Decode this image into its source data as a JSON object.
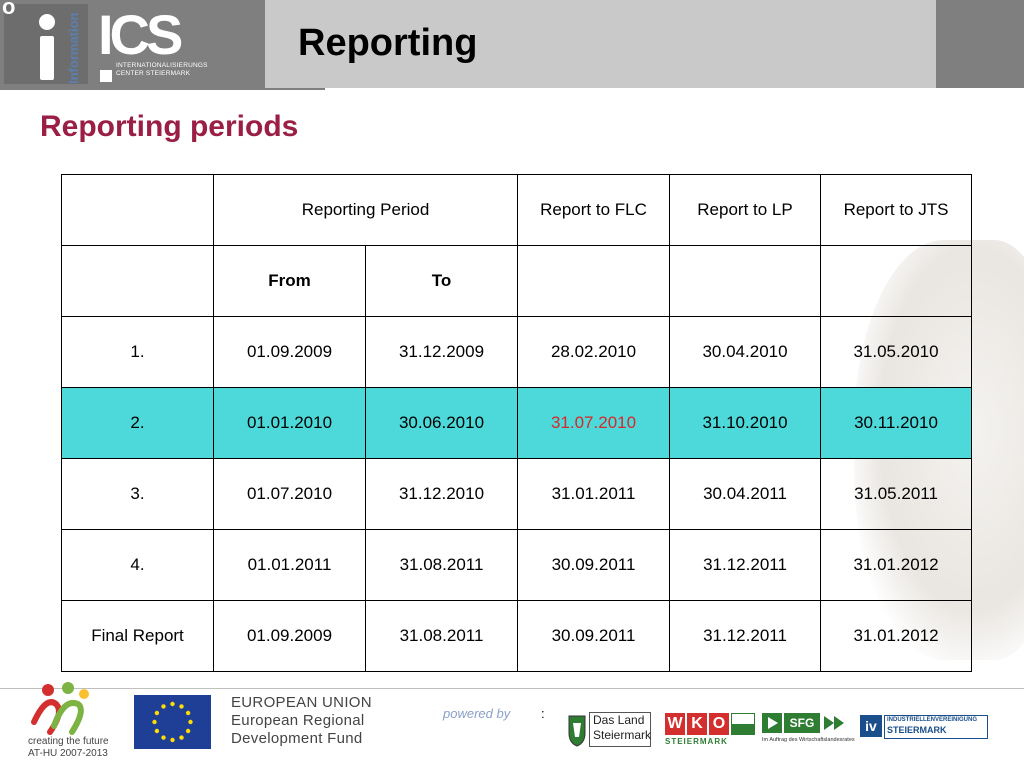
{
  "header": {
    "title": "Reporting",
    "info_label": "Information",
    "corner_mark": "o",
    "logo_name": "ICS",
    "logo_subtitle_line1": "INTERNATIONALISIERUNGS",
    "logo_subtitle_line2": "CENTER STEIERMARK"
  },
  "subtitle": "Reporting periods",
  "table": {
    "header": {
      "blank": "",
      "reporting_period": "Reporting Period",
      "report_flc": "Report to FLC",
      "report_lp": "Report to LP",
      "report_jts": "Report to JTS"
    },
    "subheader": {
      "from": "From",
      "to": "To"
    },
    "rows": [
      {
        "label": "1.",
        "from": "01.09.2009",
        "to": "31.12.2009",
        "flc": "28.02.2010",
        "lp": "30.04.2010",
        "jts": "31.05.2010"
      },
      {
        "label": "2.",
        "from": "01.01.2010",
        "to": "30.06.2010",
        "flc": "31.07.2010",
        "lp": "31.10.2010",
        "jts": "30.11.2010"
      },
      {
        "label": "3.",
        "from": "01.07.2010",
        "to": "31.12.2010",
        "flc": "31.01.2011",
        "lp": "30.04.2011",
        "jts": "31.05.2011"
      },
      {
        "label": "4.",
        "from": "01.01.2011",
        "to": "31.08.2011",
        "flc": "30.09.2011",
        "lp": "31.12.2011",
        "jts": "31.01.2012"
      },
      {
        "label": "Final Report",
        "from": "01.09.2009",
        "to": "31.08.2011",
        "flc": "30.09.2011",
        "lp": "31.12.2011",
        "jts": "31.01.2012"
      }
    ],
    "highlight_color": "#4dd9d9",
    "highlight_text_color": "#d62828"
  },
  "footer": {
    "ctf_line1": "creating the future",
    "ctf_line2": "AT-HU 2007-2013",
    "eu_line1": "EUROPEAN UNION",
    "eu_line2": "European Regional",
    "eu_line3": "Development Fund",
    "powered_by": "powered by",
    "colon": ":",
    "dasland_line1": "Das Land",
    "dasland_line2": "Steiermark",
    "wko_letters": [
      "W",
      "K",
      "O"
    ],
    "wko_sub": "STEIERMARK",
    "sfg_name": "SFG",
    "sfg_sub": "Im Auftrag des Wirtschaftslandesrates",
    "iv_mark": "iv",
    "iv_line1": "INDUSTRIELLENVEREINIGUNG",
    "iv_line2": "STEIERMARK"
  }
}
